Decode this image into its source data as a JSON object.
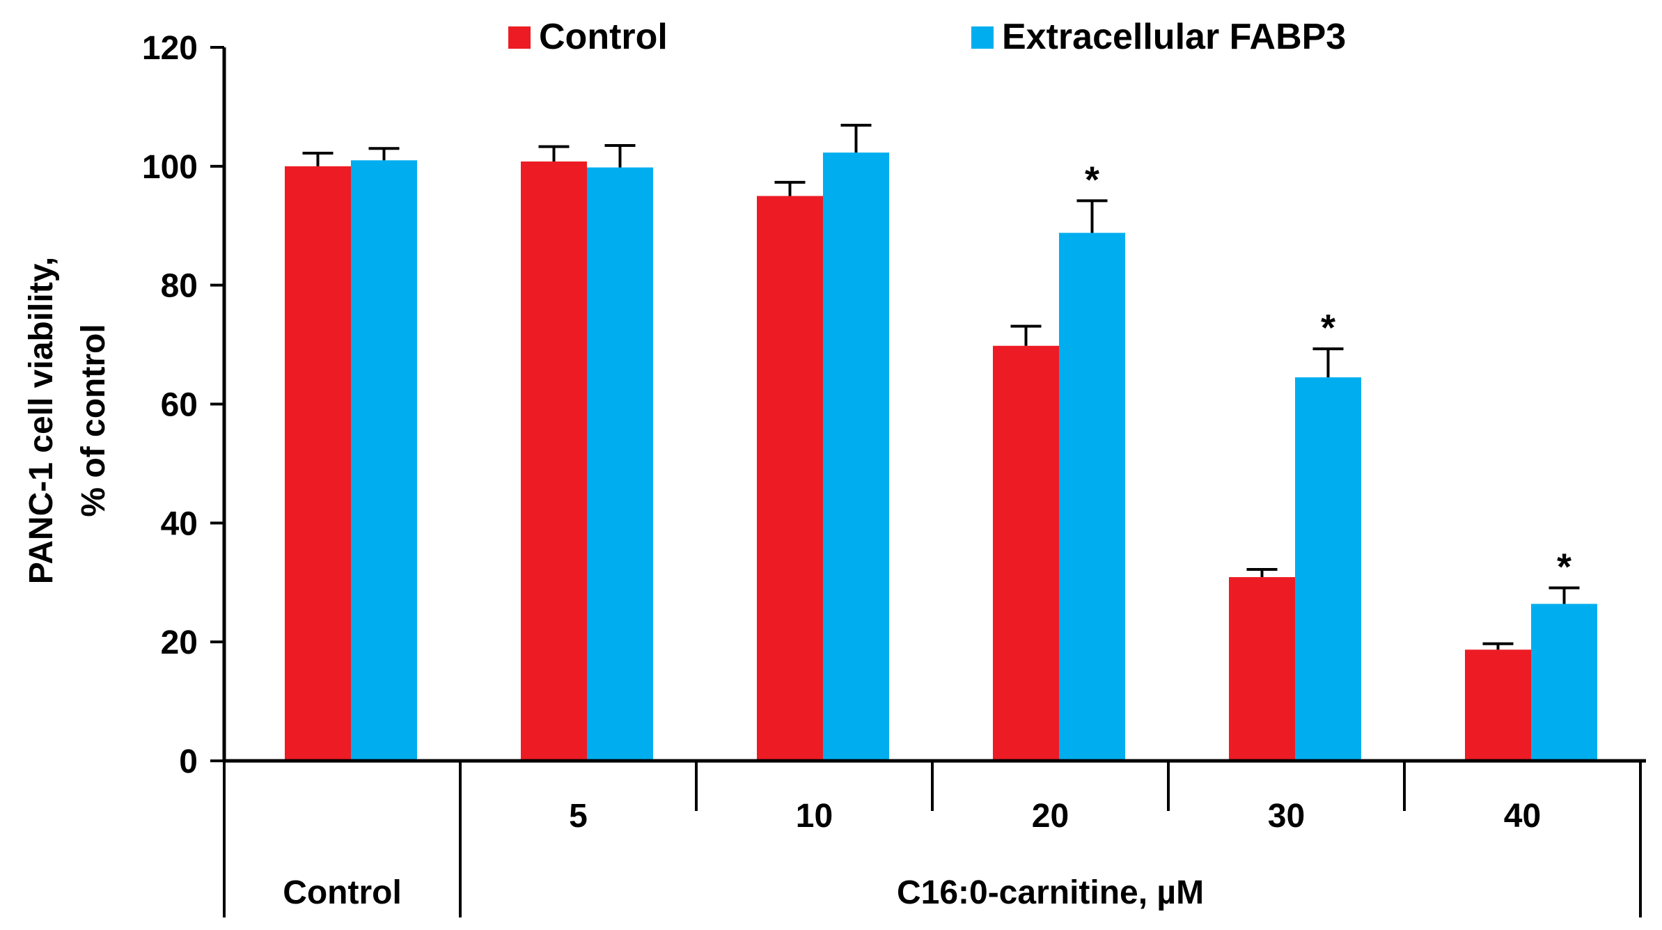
{
  "chart_data": {
    "type": "bar",
    "ylabel_line1": "PANC-1 cell viability,",
    "ylabel_line2": "% of control",
    "ylim": [
      0,
      120
    ],
    "yticks": [
      0,
      20,
      40,
      60,
      80,
      100,
      120
    ],
    "groups": [
      {
        "label": "Control",
        "category": "Control"
      },
      {
        "label": "C16:0-carnitine, µM",
        "category": "C16:0-carnitine"
      }
    ],
    "categories": [
      "",
      "5",
      "10",
      "20",
      "30",
      "40"
    ],
    "series": [
      {
        "name": "Control",
        "color": "#ed1c24",
        "values": [
          100,
          100.8,
          95,
          69.8,
          30.9,
          18.7
        ],
        "errors": [
          2.2,
          2.5,
          2.3,
          3.3,
          1.3,
          1.0
        ]
      },
      {
        "name": "Extracellular FABP3",
        "color": "#00aeef",
        "values": [
          101,
          99.8,
          102.3,
          88.8,
          64.5,
          26.4
        ],
        "errors": [
          2.0,
          3.7,
          4.6,
          5.4,
          4.8,
          2.7
        ]
      }
    ],
    "significance": [
      {
        "series": "Extracellular FABP3",
        "category_index": 3,
        "text": "*"
      },
      {
        "series": "Extracellular FABP3",
        "category_index": 4,
        "text": "*"
      },
      {
        "series": "Extracellular FABP3",
        "category_index": 5,
        "text": "*"
      }
    ],
    "legend_position": "top",
    "grid": false
  }
}
